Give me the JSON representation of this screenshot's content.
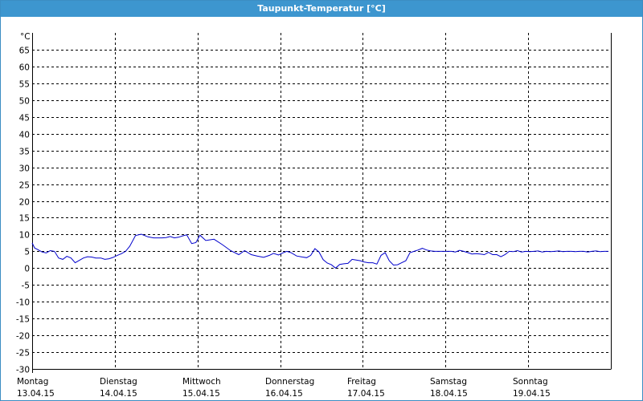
{
  "window": {
    "title": "Taupunkt-Temperatur [°C]"
  },
  "chart_data": {
    "type": "line",
    "title": "Taupunkt-Temperatur [°C]",
    "unit": "°C",
    "ylim": [
      -30,
      70
    ],
    "yticks": [
      -30,
      -25,
      -20,
      -15,
      -10,
      -5,
      0,
      5,
      10,
      15,
      20,
      25,
      30,
      35,
      40,
      45,
      50,
      55,
      60,
      65
    ],
    "xlim": [
      0,
      7
    ],
    "days": [
      {
        "weekday": "Montag",
        "date": "13.04.15"
      },
      {
        "weekday": "Dienstag",
        "date": "14.04.15"
      },
      {
        "weekday": "Mittwoch",
        "date": "15.04.15"
      },
      {
        "weekday": "Donnerstag",
        "date": "16.04.15"
      },
      {
        "weekday": "Freitag",
        "date": "17.04.15"
      },
      {
        "weekday": "Samstag",
        "date": "18.04.15"
      },
      {
        "weekday": "Sonntag",
        "date": "19.04.15"
      }
    ],
    "grid": true,
    "colors": {
      "line": "#0000cc",
      "title_bar": "#3d96cf"
    },
    "series": [
      {
        "x": [
          0.0,
          0.03,
          0.07,
          0.12,
          0.17,
          0.22,
          0.27,
          0.32,
          0.37,
          0.42,
          0.47,
          0.52,
          0.57,
          0.62,
          0.67,
          0.72,
          0.77,
          0.83,
          0.88,
          0.93,
          0.98,
          1.03,
          1.08,
          1.13,
          1.18,
          1.25,
          1.32,
          1.4,
          1.47,
          1.52,
          1.57,
          1.62,
          1.67,
          1.72,
          1.77,
          1.82,
          1.87,
          1.93,
          1.98,
          2.03,
          2.1,
          2.2,
          2.3,
          2.4,
          2.5,
          2.57,
          2.65,
          2.72,
          2.8,
          2.87,
          2.92,
          2.98,
          3.03,
          3.08,
          3.13,
          3.2,
          3.27,
          3.32,
          3.37,
          3.42,
          3.47,
          3.52,
          3.57,
          3.62,
          3.67,
          3.72,
          3.77,
          3.82,
          3.87,
          3.92,
          3.97,
          4.02,
          4.07,
          4.12,
          4.17,
          4.22,
          4.27,
          4.32,
          4.37,
          4.42,
          4.47,
          4.52,
          4.57,
          4.62,
          4.67,
          4.72,
          4.77,
          4.82,
          4.87,
          4.92,
          4.97,
          5.02,
          5.07,
          5.12,
          5.17,
          5.22,
          5.27,
          5.32,
          5.37,
          5.42,
          5.47,
          5.52,
          5.57,
          5.62,
          5.67,
          5.72,
          5.77,
          5.82,
          5.87,
          5.92,
          5.97,
          6.02,
          6.07,
          6.12,
          6.17,
          6.22,
          6.27,
          6.32,
          6.37,
          6.42,
          6.47,
          6.52,
          6.57,
          6.62,
          6.67,
          6.72,
          6.77,
          6.82,
          6.87,
          6.92,
          6.97
        ],
        "y": [
          7.5,
          6.0,
          5.5,
          4.8,
          4.5,
          5.2,
          5.0,
          3.0,
          2.6,
          3.5,
          3.0,
          1.6,
          2.3,
          3.0,
          3.4,
          3.3,
          3.0,
          3.0,
          2.6,
          2.8,
          3.2,
          3.8,
          4.3,
          5.0,
          6.5,
          9.7,
          10.1,
          9.3,
          9.0,
          9.0,
          9.0,
          9.1,
          9.4,
          9.0,
          9.2,
          9.6,
          9.9,
          7.3,
          7.6,
          9.8,
          8.2,
          8.6,
          7.0,
          5.2,
          4.0,
          5.2,
          4.0,
          3.6,
          3.2,
          3.8,
          4.4,
          3.9,
          4.5,
          5.0,
          4.6,
          3.6,
          3.3,
          3.1,
          3.8,
          5.8,
          4.8,
          2.5,
          1.5,
          1.0,
          0.0,
          1.1,
          1.3,
          1.4,
          2.6,
          2.4,
          2.2,
          1.8,
          1.6,
          1.6,
          1.2,
          3.8,
          4.6,
          2.2,
          0.9,
          1.0,
          1.6,
          2.2,
          4.6,
          5.0,
          5.4,
          5.9,
          5.4,
          5.1,
          5.0,
          5.0,
          5.0,
          5.0,
          5.0,
          4.8,
          5.3,
          5.0,
          4.6,
          4.2,
          4.3,
          4.2,
          4.0,
          4.7,
          4.0,
          4.0,
          3.4,
          4.0,
          5.0,
          4.9,
          5.2,
          4.8,
          5.0,
          4.9,
          5.0,
          5.1,
          4.8,
          5.0,
          4.9,
          5.0,
          5.1,
          4.9,
          5.0,
          5.0,
          4.9,
          5.0,
          5.0,
          4.8,
          5.0,
          5.1,
          4.9,
          5.0,
          5.0
        ]
      }
    ]
  }
}
